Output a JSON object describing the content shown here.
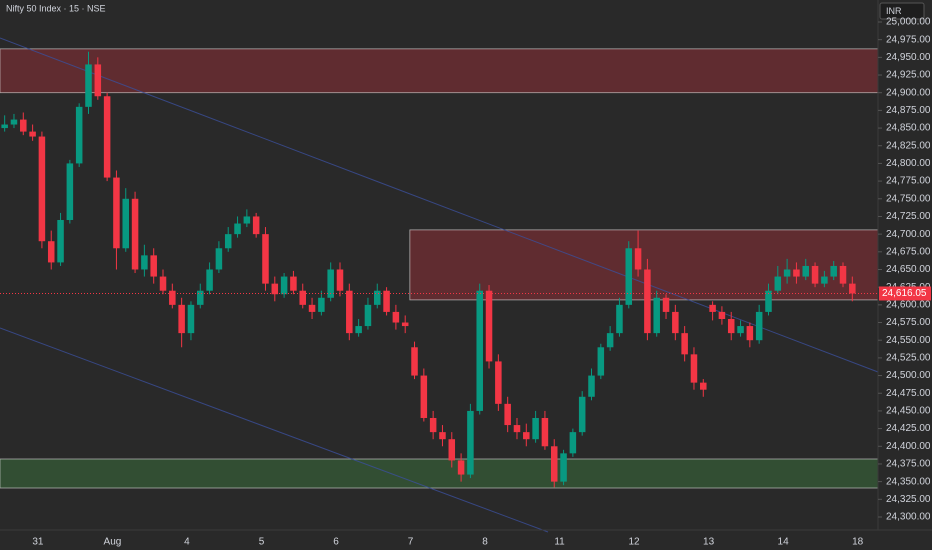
{
  "chart_data": {
    "type": "candlestick",
    "title": "Nifty 50 Index · 15 · NSE",
    "currency": "INR",
    "up_color": "#089981",
    "down_color": "#f23645",
    "categories": [
      null,
      null,
      null,
      null,
      "31",
      null,
      null,
      null,
      null,
      null,
      null,
      null,
      "Aug",
      null,
      null,
      null,
      null,
      null,
      null,
      null,
      "4",
      null,
      null,
      null,
      null,
      null,
      null,
      null,
      "5",
      null,
      null,
      null,
      null,
      null,
      null,
      null,
      "6",
      null,
      null,
      null,
      null,
      null,
      null,
      null,
      "7",
      null,
      null,
      null,
      null,
      null,
      null,
      null,
      "8",
      null,
      null,
      null,
      null,
      null,
      null,
      null,
      "11",
      null,
      null,
      null,
      null,
      null,
      null,
      null,
      "12",
      null,
      null,
      null,
      null,
      null,
      null,
      null,
      "13",
      null,
      null,
      null,
      null,
      null,
      null,
      null,
      "14",
      null,
      null,
      null,
      null,
      null,
      null,
      null,
      "18"
    ],
    "open": [
      24850,
      24855,
      24862,
      24845,
      24838,
      24690,
      24660,
      24720,
      24800,
      24880,
      24940,
      24895,
      24780,
      24680,
      24750,
      24650,
      24670,
      24640,
      24620,
      24600,
      24560,
      24600,
      24620,
      24650,
      24680,
      24700,
      24715,
      24725,
      24700,
      24630,
      24615,
      24640,
      24620,
      24600,
      24590,
      24610,
      24650,
      24620,
      24560,
      24570,
      24600,
      24620,
      24590,
      24575,
      24540,
      24500,
      24440,
      24420,
      24410,
      24380,
      24360,
      24450,
      24620,
      24520,
      24460,
      24430,
      24420,
      24410,
      24440,
      24400,
      24350,
      24390,
      24420,
      24470,
      24500,
      24540,
      24560,
      24600,
      24680,
      24650,
      24560,
      24610,
      24590,
      24560,
      24530,
      24490,
      24600,
      24590,
      24580,
      24560,
      24570,
      24550,
      24590,
      24620,
      24640,
      24650,
      24640,
      24655,
      24630,
      24640,
      24655,
      24630,
      null
    ],
    "high": [
      24868,
      24870,
      24872,
      24855,
      24845,
      24705,
      24730,
      24805,
      24885,
      24958,
      24950,
      24900,
      24790,
      24765,
      24760,
      24685,
      24680,
      24650,
      24630,
      24610,
      24605,
      24630,
      24660,
      24690,
      24710,
      24725,
      24735,
      24730,
      24710,
      24640,
      24645,
      24648,
      24630,
      24610,
      24620,
      24660,
      24660,
      24630,
      24580,
      24610,
      24630,
      24625,
      24600,
      24585,
      24548,
      24510,
      24450,
      24430,
      24420,
      24390,
      24460,
      24630,
      24628,
      24530,
      24470,
      24440,
      24432,
      24450,
      24450,
      24410,
      24395,
      24425,
      24478,
      24510,
      24545,
      24570,
      24610,
      24690,
      24705,
      24665,
      24620,
      24615,
      24600,
      24570,
      24540,
      24495,
      24605,
      24598,
      24590,
      24578,
      24575,
      24600,
      24630,
      24655,
      24665,
      24660,
      24665,
      24660,
      24648,
      24662,
      24660,
      24640,
      null
    ],
    "low": [
      24845,
      24850,
      24840,
      24832,
      24680,
      24650,
      24655,
      24715,
      24795,
      24870,
      24890,
      24775,
      24650,
      24675,
      24645,
      24640,
      24630,
      24615,
      24595,
      24540,
      24550,
      24595,
      24615,
      24645,
      24675,
      24695,
      24710,
      24695,
      24620,
      24605,
      24610,
      24615,
      24595,
      24580,
      24585,
      24605,
      24612,
      24550,
      24555,
      24565,
      24595,
      24585,
      24565,
      24560,
      24495,
      24435,
      24410,
      24400,
      24370,
      24350,
      24355,
      24445,
      24510,
      24450,
      24420,
      24410,
      24400,
      24405,
      24395,
      24342,
      24345,
      24385,
      24415,
      24465,
      24495,
      24535,
      24555,
      24595,
      24640,
      24550,
      24555,
      24580,
      24550,
      24520,
      24480,
      24470,
      24578,
      24572,
      24550,
      24555,
      24540,
      24545,
      24585,
      24615,
      24630,
      24630,
      24635,
      24625,
      24625,
      24635,
      24625,
      24605,
      null
    ],
    "close": [
      24855,
      24862,
      24845,
      24838,
      24690,
      24660,
      24720,
      24800,
      24880,
      24940,
      24895,
      24780,
      24680,
      24750,
      24650,
      24670,
      24640,
      24620,
      24600,
      24560,
      24600,
      24620,
      24650,
      24680,
      24700,
      24715,
      24725,
      24700,
      24630,
      24615,
      24640,
      24620,
      24600,
      24590,
      24610,
      24650,
      24620,
      24560,
      24570,
      24600,
      24620,
      24590,
      24575,
      24570,
      24500,
      24440,
      24420,
      24410,
      24380,
      24360,
      24450,
      24620,
      24520,
      24460,
      24430,
      24420,
      24410,
      24440,
      24400,
      24350,
      24390,
      24420,
      24470,
      24500,
      24540,
      24560,
      24600,
      24680,
      24650,
      24560,
      24610,
      24590,
      24560,
      24530,
      24490,
      24480,
      24590,
      24580,
      24560,
      24570,
      24550,
      24590,
      24620,
      24640,
      24650,
      24640,
      24655,
      24630,
      24640,
      24655,
      24630,
      24616.05,
      null
    ],
    "last_price": {
      "value": 24616.05,
      "label": "24,616.05"
    },
    "zones": [
      {
        "from": 24900,
        "to": 24962,
        "start": 0,
        "color": "#f23645"
      },
      {
        "from": 24607,
        "to": 24706,
        "start": 44,
        "color": "#f23645"
      },
      {
        "from": 24341,
        "to": 24382,
        "start": 0,
        "color": "#4caf50"
      }
    ],
    "ylim": [
      24281.6,
      25031.1
    ],
    "yticks": [
      {
        "value": 24300,
        "label": "24,300.00"
      },
      {
        "value": 24325,
        "label": "24,325.00"
      },
      {
        "value": 24350,
        "label": "24,350.00"
      },
      {
        "value": 24375,
        "label": "24,375.00"
      },
      {
        "value": 24400,
        "label": "24,400.00"
      },
      {
        "value": 24425,
        "label": "24,425.00"
      },
      {
        "value": 24450,
        "label": "24,450.00"
      },
      {
        "value": 24475,
        "label": "24,475.00"
      },
      {
        "value": 24500,
        "label": "24,500.00"
      },
      {
        "value": 24525,
        "label": "24,525.00"
      },
      {
        "value": 24550,
        "label": "24,550.00"
      },
      {
        "value": 24575,
        "label": "24,575.00"
      },
      {
        "value": 24600,
        "label": "24,600.00"
      },
      {
        "value": 24625,
        "label": "24,625.00"
      },
      {
        "value": 24650,
        "label": "24,650.00"
      },
      {
        "value": 24675,
        "label": "24,675.00"
      },
      {
        "value": 24700,
        "label": "24,700.00"
      },
      {
        "value": 24725,
        "label": "24,725.00"
      },
      {
        "value": 24750,
        "label": "24,750.00"
      },
      {
        "value": 24775,
        "label": "24,775.00"
      },
      {
        "value": 24800,
        "label": "24,800.00"
      },
      {
        "value": 24825,
        "label": "24,825.00"
      },
      {
        "value": 24850,
        "label": "24,850.00"
      },
      {
        "value": 24875,
        "label": "24,875.00"
      },
      {
        "value": 24900,
        "label": "24,900.00"
      },
      {
        "value": 24925,
        "label": "24,925.00"
      },
      {
        "value": 24950,
        "label": "24,950.00"
      },
      {
        "value": 24975,
        "label": "24,975.00"
      },
      {
        "value": 25000,
        "label": "25,000.00"
      }
    ]
  }
}
